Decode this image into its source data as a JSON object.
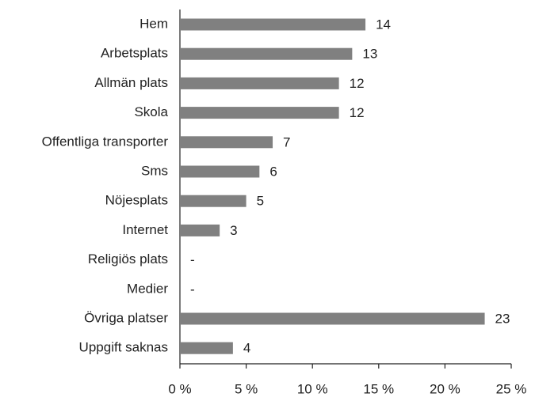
{
  "chart_data": {
    "type": "barh",
    "categories": [
      "Hem",
      "Arbetsplats",
      "Allmän plats",
      "Skola",
      "Offentliga transporter",
      "Sms",
      "Nöjesplats",
      "Internet",
      "Religiös plats",
      "Medier",
      "Övriga platser",
      "Uppgift saknas"
    ],
    "values": [
      14,
      13,
      12,
      12,
      7,
      6,
      5,
      3,
      null,
      null,
      23,
      4
    ],
    "value_labels": [
      "14",
      "13",
      "12",
      "12",
      "7",
      "6",
      "5",
      "3",
      "-",
      "-",
      "23",
      "4"
    ],
    "color": "#808080",
    "xlim": [
      0,
      25
    ],
    "xticks": [
      {
        "value": 0,
        "label": "0 %"
      },
      {
        "value": 5,
        "label": "5 %"
      },
      {
        "value": 10,
        "label": "10 %"
      },
      {
        "value": 15,
        "label": "15 %"
      },
      {
        "value": 20,
        "label": "20 %"
      },
      {
        "value": 25,
        "label": "25 %"
      }
    ]
  }
}
